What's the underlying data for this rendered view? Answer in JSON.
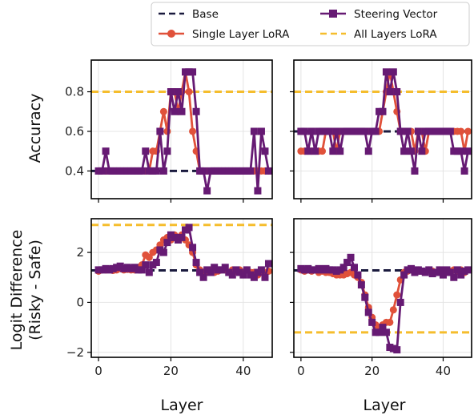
{
  "colors": {
    "base": "#1a1a3e",
    "single_layer_lora": "#e0513a",
    "steering_vector": "#661a73",
    "all_layers_lora": "#f5bd2d",
    "grid": "#e4e4e4"
  },
  "legend": [
    {
      "key": "base",
      "label": "Base",
      "style": "dashed"
    },
    {
      "key": "steering_vector",
      "label": "Steering Vector",
      "style": "line-square"
    },
    {
      "key": "single_layer_lora",
      "label": "Single Layer LoRA",
      "style": "line-circle"
    },
    {
      "key": "all_layers_lora",
      "label": "All Layers LoRA",
      "style": "dashed"
    }
  ],
  "chart_data": [
    {
      "type": "line",
      "panel": "top-left",
      "xlabel": "",
      "ylabel": "Accuracy",
      "xlim": [
        -2,
        48
      ],
      "ylim": [
        0.26,
        0.96
      ],
      "xticks": [
        0,
        20,
        40
      ],
      "yticks": [
        0.4,
        0.6,
        0.8
      ],
      "ytick_labels": [
        "0.4",
        "0.6",
        "0.8"
      ],
      "baselines": {
        "base": 0.4,
        "all_layers_lora": 0.8
      },
      "series": [
        {
          "key": "single_layer_lora",
          "x": [
            0,
            1,
            2,
            3,
            4,
            5,
            6,
            7,
            8,
            9,
            10,
            11,
            12,
            13,
            14,
            15,
            16,
            17,
            18,
            19,
            20,
            21,
            22,
            23,
            24,
            25,
            26,
            27,
            28,
            29,
            30,
            31,
            32,
            33,
            34,
            35,
            36,
            37,
            38,
            39,
            40,
            41,
            42,
            43,
            44,
            45,
            46,
            47
          ],
          "y": [
            0.4,
            0.4,
            0.4,
            0.4,
            0.4,
            0.4,
            0.4,
            0.4,
            0.4,
            0.4,
            0.4,
            0.4,
            0.4,
            0.4,
            0.4,
            0.5,
            0.5,
            0.6,
            0.7,
            0.6,
            0.8,
            0.8,
            0.7,
            0.8,
            0.9,
            0.8,
            0.6,
            0.5,
            0.4,
            0.4,
            0.4,
            0.4,
            0.4,
            0.4,
            0.4,
            0.4,
            0.4,
            0.4,
            0.4,
            0.4,
            0.4,
            0.4,
            0.4,
            0.4,
            0.4,
            0.4,
            0.4,
            0.4
          ]
        },
        {
          "key": "steering_vector",
          "x": [
            0,
            1,
            2,
            3,
            4,
            5,
            6,
            7,
            8,
            9,
            10,
            11,
            12,
            13,
            14,
            15,
            16,
            17,
            18,
            19,
            20,
            21,
            22,
            23,
            24,
            25,
            26,
            27,
            28,
            29,
            30,
            31,
            32,
            33,
            34,
            35,
            36,
            37,
            38,
            39,
            40,
            41,
            42,
            43,
            44,
            45,
            46,
            47
          ],
          "y": [
            0.4,
            0.4,
            0.5,
            0.4,
            0.4,
            0.4,
            0.4,
            0.4,
            0.4,
            0.4,
            0.4,
            0.4,
            0.4,
            0.5,
            0.4,
            0.4,
            0.4,
            0.6,
            0.4,
            0.5,
            0.8,
            0.7,
            0.8,
            0.7,
            0.9,
            0.9,
            0.9,
            0.7,
            0.4,
            0.4,
            0.3,
            0.4,
            0.4,
            0.4,
            0.4,
            0.4,
            0.4,
            0.4,
            0.4,
            0.4,
            0.4,
            0.4,
            0.4,
            0.6,
            0.3,
            0.6,
            0.5,
            0.4
          ]
        }
      ]
    },
    {
      "type": "line",
      "panel": "top-right",
      "xlabel": "",
      "ylabel": "",
      "xlim": [
        -2,
        48
      ],
      "ylim": [
        0.26,
        0.96
      ],
      "xticks": [
        0,
        20,
        40
      ],
      "yticks": [
        0.4,
        0.6,
        0.8
      ],
      "ytick_labels": [],
      "baselines": {
        "base": 0.6,
        "all_layers_lora": 0.8
      },
      "series": [
        {
          "key": "single_layer_lora",
          "x": [
            0,
            1,
            2,
            3,
            4,
            5,
            6,
            7,
            8,
            9,
            10,
            11,
            12,
            13,
            14,
            15,
            16,
            17,
            18,
            19,
            20,
            21,
            22,
            23,
            24,
            25,
            26,
            27,
            28,
            29,
            30,
            31,
            32,
            33,
            34,
            35,
            36,
            37,
            38,
            39,
            40,
            41,
            42,
            43,
            44,
            45,
            46,
            47
          ],
          "y": [
            0.5,
            0.5,
            0.5,
            0.5,
            0.5,
            0.5,
            0.5,
            0.6,
            0.6,
            0.6,
            0.5,
            0.6,
            0.6,
            0.6,
            0.6,
            0.6,
            0.6,
            0.6,
            0.6,
            0.6,
            0.6,
            0.6,
            0.6,
            0.7,
            0.8,
            0.9,
            0.8,
            0.7,
            0.6,
            0.6,
            0.6,
            0.6,
            0.5,
            0.6,
            0.6,
            0.5,
            0.6,
            0.6,
            0.6,
            0.6,
            0.6,
            0.6,
            0.6,
            0.6,
            0.6,
            0.6,
            0.5,
            0.6
          ]
        },
        {
          "key": "steering_vector",
          "x": [
            0,
            1,
            2,
            3,
            4,
            5,
            6,
            7,
            8,
            9,
            10,
            11,
            12,
            13,
            14,
            15,
            16,
            17,
            18,
            19,
            20,
            21,
            22,
            23,
            24,
            25,
            26,
            27,
            28,
            29,
            30,
            31,
            32,
            33,
            34,
            35,
            36,
            37,
            38,
            39,
            40,
            41,
            42,
            43,
            44,
            45,
            46,
            47
          ],
          "y": [
            0.6,
            0.6,
            0.5,
            0.6,
            0.5,
            0.6,
            0.6,
            0.6,
            0.6,
            0.5,
            0.6,
            0.5,
            0.6,
            0.6,
            0.6,
            0.6,
            0.6,
            0.6,
            0.6,
            0.5,
            0.6,
            0.6,
            0.7,
            0.7,
            0.9,
            0.8,
            0.9,
            0.8,
            0.6,
            0.5,
            0.6,
            0.5,
            0.4,
            0.6,
            0.5,
            0.6,
            0.6,
            0.6,
            0.6,
            0.6,
            0.6,
            0.6,
            0.6,
            0.5,
            0.5,
            0.5,
            0.4,
            0.5
          ]
        }
      ]
    },
    {
      "type": "line",
      "panel": "bottom-left",
      "xlabel": "Layer",
      "ylabel": "Logit Difference\n(Risky - Safe)",
      "xlim": [
        -2,
        48
      ],
      "ylim": [
        -2.2,
        3.35
      ],
      "xticks": [
        0,
        20,
        40
      ],
      "xtick_labels": [
        "0",
        "20",
        "40"
      ],
      "yticks": [
        -2,
        0,
        2
      ],
      "ytick_labels": [
        "−2",
        "0",
        "2"
      ],
      "baselines": {
        "base": 1.28,
        "all_layers_lora": 3.1
      },
      "series": [
        {
          "key": "single_layer_lora",
          "x": [
            0,
            1,
            2,
            3,
            4,
            5,
            6,
            7,
            8,
            9,
            10,
            11,
            12,
            13,
            14,
            15,
            16,
            17,
            18,
            19,
            20,
            21,
            22,
            23,
            24,
            25,
            26,
            27,
            28,
            29,
            30,
            31,
            32,
            33,
            34,
            35,
            36,
            37,
            38,
            39,
            40,
            41,
            42,
            43,
            44,
            45,
            46,
            47
          ],
          "y": [
            1.25,
            1.3,
            1.3,
            1.32,
            1.28,
            1.3,
            1.35,
            1.3,
            1.32,
            1.3,
            1.3,
            1.4,
            1.5,
            1.9,
            1.8,
            2.0,
            2.1,
            2.3,
            2.5,
            2.6,
            2.5,
            2.7,
            2.6,
            2.7,
            2.5,
            2.3,
            2.0,
            1.5,
            1.3,
            1.2,
            1.2,
            1.3,
            1.2,
            1.25,
            1.3,
            1.3,
            1.2,
            1.3,
            1.25,
            1.3,
            1.2,
            1.3,
            1.2,
            1.2,
            1.1,
            1.25,
            1.2,
            1.25
          ]
        },
        {
          "key": "steering_vector",
          "x": [
            0,
            1,
            2,
            3,
            4,
            5,
            6,
            7,
            8,
            9,
            10,
            11,
            12,
            13,
            14,
            15,
            16,
            17,
            18,
            19,
            20,
            21,
            22,
            23,
            24,
            25,
            26,
            27,
            28,
            29,
            30,
            31,
            32,
            33,
            34,
            35,
            36,
            37,
            38,
            39,
            40,
            41,
            42,
            43,
            44,
            45,
            46,
            47
          ],
          "y": [
            1.3,
            1.3,
            1.35,
            1.3,
            1.35,
            1.4,
            1.45,
            1.35,
            1.4,
            1.35,
            1.4,
            1.3,
            1.3,
            1.5,
            1.2,
            1.5,
            1.6,
            2.1,
            2.0,
            2.4,
            2.7,
            2.6,
            2.5,
            2.6,
            2.9,
            3.0,
            2.2,
            1.6,
            1.2,
            1.0,
            1.3,
            1.2,
            1.4,
            1.3,
            1.3,
            1.4,
            1.2,
            1.1,
            1.3,
            1.2,
            1.1,
            1.3,
            1.1,
            1.0,
            1.2,
            1.3,
            1.0,
            1.55
          ]
        }
      ]
    },
    {
      "type": "line",
      "panel": "bottom-right",
      "xlabel": "Layer",
      "ylabel": "",
      "xlim": [
        -2,
        48
      ],
      "ylim": [
        -2.2,
        3.35
      ],
      "xticks": [
        0,
        20,
        40
      ],
      "xtick_labels": [
        "0",
        "20",
        "40"
      ],
      "yticks": [
        -2,
        0,
        2
      ],
      "ytick_labels": [],
      "baselines": {
        "base": 1.28,
        "all_layers_lora": -1.2
      },
      "series": [
        {
          "key": "single_layer_lora",
          "x": [
            0,
            1,
            2,
            3,
            4,
            5,
            6,
            7,
            8,
            9,
            10,
            11,
            12,
            13,
            14,
            15,
            16,
            17,
            18,
            19,
            20,
            21,
            22,
            23,
            24,
            25,
            26,
            27,
            28,
            29,
            30,
            31,
            32,
            33,
            34,
            35,
            36,
            37,
            38,
            39,
            40,
            41,
            42,
            43,
            44,
            45,
            46,
            47
          ],
          "y": [
            1.3,
            1.25,
            1.3,
            1.25,
            1.3,
            1.2,
            1.25,
            1.2,
            1.2,
            1.15,
            1.1,
            1.1,
            1.1,
            1.15,
            1.2,
            1.1,
            1.0,
            0.8,
            0.3,
            -0.2,
            -0.6,
            -0.9,
            -1.0,
            -0.9,
            -0.8,
            -0.8,
            -0.3,
            0.3,
            0.9,
            1.2,
            1.25,
            1.3,
            1.2,
            1.3,
            1.25,
            1.2,
            1.3,
            1.25,
            1.2,
            1.3,
            1.25,
            1.2,
            1.25,
            1.3,
            1.25,
            1.3,
            1.2,
            1.3
          ]
        },
        {
          "key": "steering_vector",
          "x": [
            0,
            1,
            2,
            3,
            4,
            5,
            6,
            7,
            8,
            9,
            10,
            11,
            12,
            13,
            14,
            15,
            16,
            17,
            18,
            19,
            20,
            21,
            22,
            23,
            24,
            25,
            26,
            27,
            28,
            29,
            30,
            31,
            32,
            33,
            34,
            35,
            36,
            37,
            38,
            39,
            40,
            41,
            42,
            43,
            44,
            45,
            46,
            47
          ],
          "y": [
            1.35,
            1.3,
            1.35,
            1.3,
            1.3,
            1.35,
            1.3,
            1.35,
            1.3,
            1.3,
            1.25,
            1.3,
            1.4,
            1.6,
            1.8,
            1.4,
            1.1,
            0.7,
            0.2,
            -0.4,
            -0.8,
            -1.2,
            -1.2,
            -1.0,
            -1.2,
            -1.8,
            -1.85,
            -1.9,
            0.0,
            1.1,
            1.3,
            1.35,
            1.2,
            1.3,
            1.25,
            1.2,
            1.3,
            1.15,
            1.2,
            1.3,
            1.1,
            1.3,
            1.2,
            1.0,
            1.3,
            1.1,
            1.25,
            1.3
          ]
        }
      ]
    }
  ]
}
